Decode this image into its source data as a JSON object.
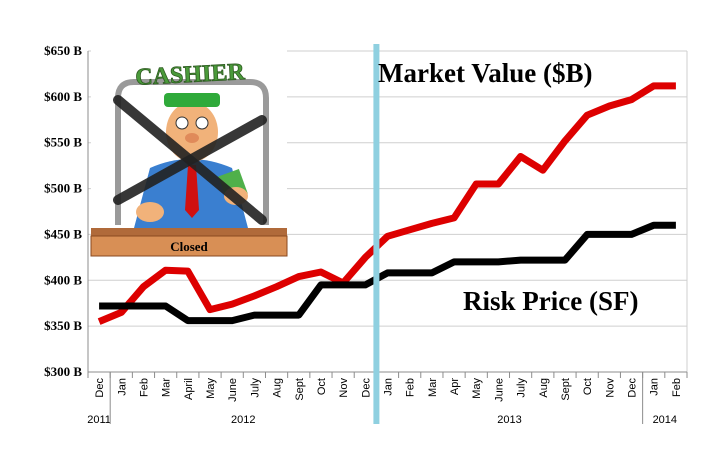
{
  "chart_data": {
    "type": "line",
    "categories": [
      "Dec",
      "Jan",
      "Feb",
      "Mar",
      "April",
      "May",
      "June",
      "July",
      "Aug",
      "Sept",
      "Oct",
      "Nov",
      "Dec",
      "Jan",
      "Feb",
      "Mar",
      "Apr",
      "May",
      "June",
      "July",
      "Aug",
      "Sept",
      "Oct",
      "Nov",
      "Dec",
      "Jan",
      "Feb"
    ],
    "year_labels": [
      {
        "label": "2011",
        "index": 0
      },
      {
        "label": "2012",
        "index": 6.5
      },
      {
        "label": "2013",
        "index": 18.5
      },
      {
        "label": "2014",
        "index": 25.5
      }
    ],
    "series": [
      {
        "name": "Market Value ($B)",
        "color": "#dd0000",
        "values": [
          355,
          365,
          393,
          411,
          410,
          368,
          374,
          383,
          393,
          404,
          409,
          397,
          425,
          448,
          455,
          462,
          468,
          505,
          505,
          535,
          520,
          552,
          580,
          590,
          597,
          612,
          612
        ]
      },
      {
        "name": "Risk Price (SF)",
        "color": "#000000",
        "values": [
          372,
          372,
          372,
          372,
          356,
          356,
          356,
          362,
          362,
          362,
          395,
          395,
          395,
          408,
          408,
          408,
          420,
          420,
          420,
          422,
          422,
          422,
          450,
          450,
          450,
          460,
          460
        ]
      }
    ],
    "y_ticks": [
      "$300 B",
      "$350 B",
      "$400 B",
      "$450 B",
      "$500 B",
      "$550 B",
      "$600 B",
      "$650 B"
    ],
    "ylim": [
      300,
      650
    ],
    "grid": "horizontal",
    "marker_line": {
      "after_index": 12,
      "color": "#8fd0e0"
    }
  },
  "annotations": {
    "market_value": "Market Value ($B)",
    "risk_price": "Risk Price (SF)"
  },
  "illustration": {
    "sign": "CASHIER",
    "plaque": "Closed"
  }
}
